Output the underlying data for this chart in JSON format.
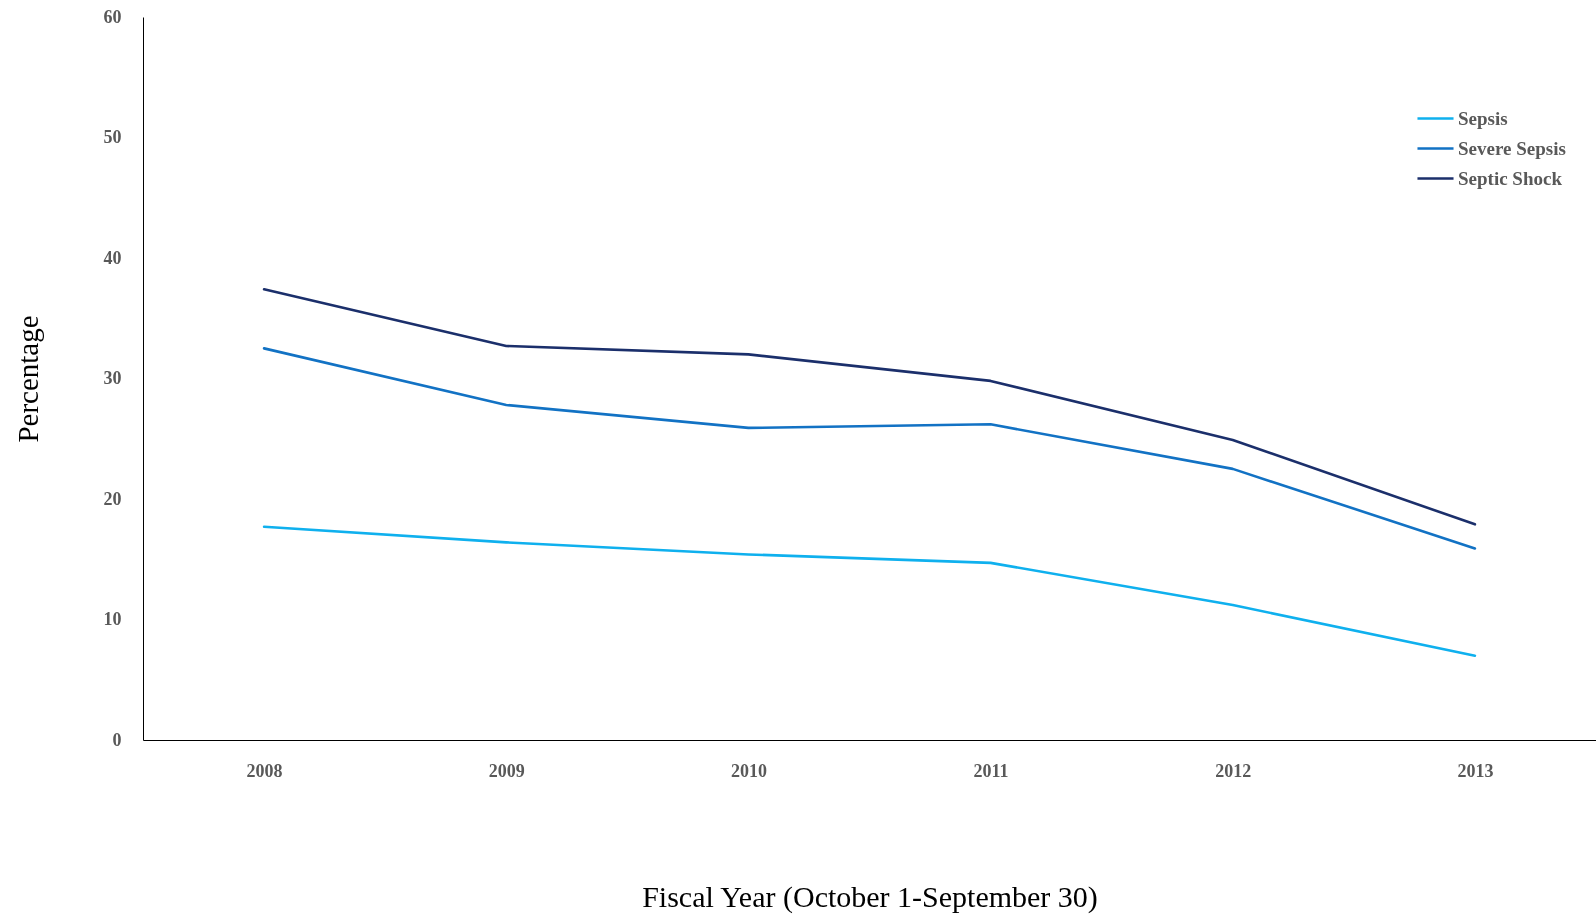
{
  "chart_data": {
    "type": "line",
    "xlabel": "Fiscal Year (October 1-September 30)",
    "ylabel": "Percentage",
    "categories": [
      "2008",
      "2009",
      "2010",
      "2011",
      "2012",
      "2013"
    ],
    "series": [
      {
        "name": "Sepsis",
        "color": "#0fb0ee",
        "values": [
          17.7,
          16.4,
          15.4,
          14.7,
          11.2,
          7.0
        ]
      },
      {
        "name": "Severe Sepsis",
        "color": "#1272c4",
        "values": [
          32.5,
          27.8,
          25.9,
          26.2,
          22.5,
          15.9
        ]
      },
      {
        "name": "Septic Shock",
        "color": "#1b2f6b",
        "values": [
          37.4,
          32.7,
          32.0,
          29.8,
          24.9,
          17.9
        ]
      }
    ],
    "ylim": [
      0,
      60
    ],
    "yticks": [
      0,
      10,
      20,
      30,
      40,
      50,
      60
    ],
    "grid": false,
    "legend": "top right"
  }
}
